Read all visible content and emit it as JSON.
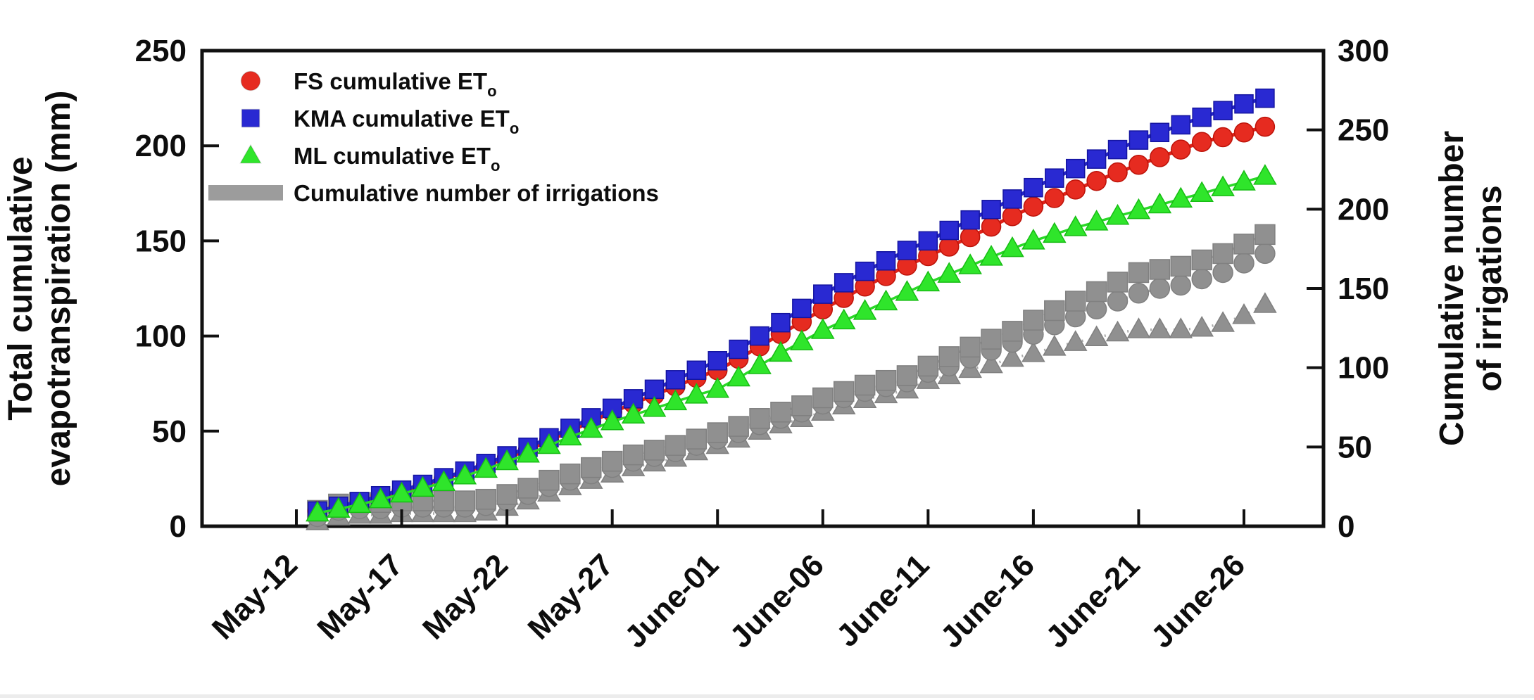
{
  "figure": {
    "background": "#ffffff",
    "frame_color": "#111111",
    "bottom_divider_color": "#ececec"
  },
  "chart_data": {
    "type": "line",
    "x": [
      "May-13",
      "May-14",
      "May-15",
      "May-16",
      "May-17",
      "May-18",
      "May-19",
      "May-20",
      "May-21",
      "May-22",
      "May-23",
      "May-24",
      "May-25",
      "May-26",
      "May-27",
      "May-28",
      "May-29",
      "May-30",
      "May-31",
      "June-01",
      "June-02",
      "June-03",
      "June-04",
      "June-05",
      "June-06",
      "June-07",
      "June-08",
      "June-09",
      "June-10",
      "June-11",
      "June-12",
      "June-13",
      "June-14",
      "June-15",
      "June-16",
      "June-17",
      "June-18",
      "June-19",
      "June-20",
      "June-21",
      "June-22",
      "June-23",
      "June-24",
      "June-25",
      "June-26",
      "June-27"
    ],
    "x_tick_labels": [
      "May-12",
      "May-17",
      "May-22",
      "May-27",
      "June-01",
      "June-06",
      "June-11",
      "June-16",
      "June-21",
      "June-26"
    ],
    "axes": {
      "left": {
        "title_lines": [
          "Total cumulative",
          "evapotranspiration (mm)"
        ],
        "min": 0,
        "max": 250,
        "ticks": [
          0,
          50,
          100,
          150,
          200,
          250
        ]
      },
      "right": {
        "title_lines": [
          "Cumulative number",
          "of irrigations"
        ],
        "min": 0,
        "max": 300,
        "ticks": [
          0,
          50,
          100,
          150,
          200,
          250,
          300
        ]
      },
      "grid": false
    },
    "series": [
      {
        "id": "fs",
        "name": "FS cumulative ET",
        "name_sub": "o",
        "axis": "left",
        "marker": "circle",
        "color": "#e62b20",
        "line": "solid",
        "values": [
          8,
          10,
          12.5,
          15.5,
          18.5,
          21.5,
          25,
          28.5,
          32,
          36,
          40,
          45,
          50,
          55,
          60,
          64.5,
          69,
          73.5,
          78,
          82,
          88,
          94.5,
          101,
          107.5,
          114,
          120,
          126,
          131.5,
          137,
          142,
          147,
          152,
          157.5,
          163,
          168,
          172.5,
          177,
          181.5,
          186,
          190,
          194,
          198,
          202,
          204.5,
          207,
          210
        ]
      },
      {
        "id": "kma",
        "name": "KMA cumulative ET",
        "name_sub": "o",
        "axis": "left",
        "marker": "square",
        "color": "#2929d2",
        "line": "solid",
        "values": [
          8,
          10.5,
          13,
          16,
          19,
          22,
          25.5,
          29,
          33,
          37,
          41.5,
          46.5,
          51.5,
          57,
          62,
          67,
          72,
          77,
          82,
          87,
          93,
          100,
          107,
          114.5,
          122,
          128,
          134,
          139.5,
          145,
          150,
          155.5,
          161,
          166.5,
          172,
          178,
          183,
          188,
          193,
          198,
          203,
          207,
          211,
          215,
          218.5,
          222,
          225
        ]
      },
      {
        "id": "ml",
        "name": "ML cumulative ET",
        "name_sub": "o",
        "axis": "left",
        "marker": "triangle",
        "color": "#2fe52b",
        "line": "solid",
        "values": [
          7,
          9,
          11.5,
          14,
          17,
          20,
          23,
          26.5,
          30,
          34,
          38,
          42.5,
          47,
          51,
          55,
          58.5,
          62,
          65.5,
          69,
          72,
          78,
          84.5,
          91,
          97,
          103,
          108,
          113,
          118,
          123,
          128,
          132.5,
          137,
          141.5,
          146,
          150,
          153.5,
          157,
          160,
          163,
          166,
          169,
          172,
          175,
          178,
          181,
          184
        ]
      },
      {
        "id": "irr_squares",
        "name": "Cumulative number of irrigations",
        "group": "irrigation",
        "axis": "right",
        "marker": "square",
        "color": "#909090",
        "line": "dotted",
        "values": [
          10,
          14,
          15,
          15,
          16,
          16,
          16,
          16,
          17,
          20,
          24,
          29,
          33,
          37,
          41,
          45,
          48,
          51,
          55,
          59,
          63,
          68,
          72,
          76,
          81,
          85,
          89,
          92,
          95,
          101,
          107,
          113,
          118,
          123,
          130,
          136,
          142,
          148,
          154,
          160,
          162,
          164,
          168,
          172,
          178,
          184
        ]
      },
      {
        "id": "irr_circles",
        "name": "Cumulative number of irrigations",
        "group": "irrigation",
        "axis": "right",
        "marker": "circle",
        "color": "#909090",
        "line": "dotted",
        "values": [
          6,
          10,
          11,
          11,
          12,
          12,
          12,
          12,
          13,
          16,
          20,
          25,
          29,
          33,
          37,
          41,
          44,
          47,
          51,
          55,
          59,
          64,
          68,
          72,
          77,
          81,
          85,
          88,
          91,
          97,
          101,
          106,
          111,
          116,
          121,
          127,
          132,
          137,
          142,
          147,
          150,
          152,
          156,
          160,
          166,
          172
        ]
      },
      {
        "id": "irr_triangles",
        "name": "Cumulative number of irrigations",
        "group": "irrigation",
        "axis": "right",
        "marker": "triangle",
        "color": "#909090",
        "line": "dotted",
        "values": [
          3,
          6,
          7,
          7,
          8,
          8,
          8,
          8,
          9,
          12,
          16,
          21,
          25,
          29,
          33,
          37,
          40,
          43,
          47,
          51,
          55,
          60,
          64,
          68,
          72,
          76,
          80,
          83,
          86,
          92,
          95,
          99,
          102,
          106,
          109,
          113,
          116,
          119,
          122,
          124,
          124,
          124,
          125,
          128,
          133,
          140
        ]
      }
    ],
    "legend": {
      "position": "top-left-inside",
      "entries": [
        {
          "swatch": "circle",
          "color": "#e62b20",
          "label": "FS cumulative ET",
          "sub": "o"
        },
        {
          "swatch": "square",
          "color": "#2929d2",
          "label": "KMA cumulative ET",
          "sub": "o"
        },
        {
          "swatch": "triangle",
          "color": "#2fe52b",
          "label": "ML cumulative ET",
          "sub": "o"
        },
        {
          "swatch": "bar",
          "color": "#9c9c9c",
          "label": "Cumulative number of irrigations",
          "sub": ""
        }
      ]
    }
  }
}
